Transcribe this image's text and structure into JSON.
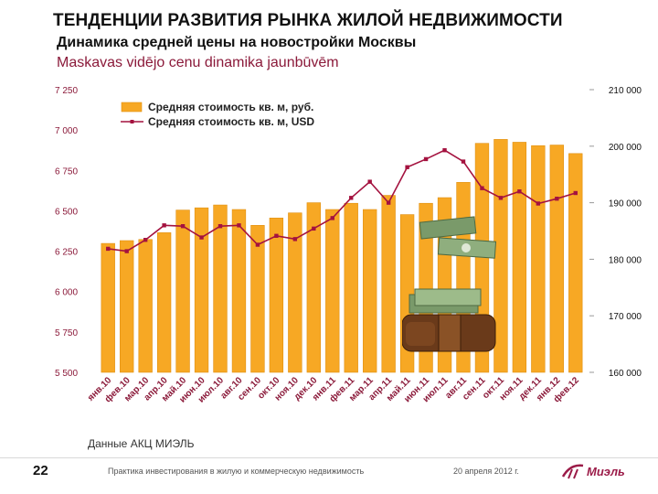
{
  "header": {
    "title": "ТЕНДЕНЦИИ РАЗВИТИЯ РЫНКА ЖИЛОЙ НЕДВИЖИМОСТИ",
    "subtitle_ru": "Динамика средней цены на новостройки Москвы",
    "subtitle_lv": "Maskavas vidējo cenu dinamika jaunbūvēm"
  },
  "chart_data": {
    "type": "bar",
    "categories": [
      "янв.10",
      "фев.10",
      "мар.10",
      "апр.10",
      "май.10",
      "июн.10",
      "июл.10",
      "авг.10",
      "сен.10",
      "окт.10",
      "ноя.10",
      "дек.10",
      "янв.11",
      "фев.11",
      "мар.11",
      "апр.11",
      "май.11",
      "июн.11",
      "июл.11",
      "авг.11",
      "сен.11",
      "окт.11",
      "ноя.11",
      "дек.11",
      "янв.12",
      "фев.12"
    ],
    "series": [
      {
        "name": "Средняя стоимость кв. м, руб.",
        "kind": "bar",
        "axis": "right",
        "values": [
          182800,
          183300,
          183500,
          184700,
          188700,
          189100,
          189600,
          188800,
          186000,
          187300,
          188200,
          190000,
          188800,
          189900,
          188800,
          191300,
          187900,
          189900,
          190900,
          193600,
          200500,
          201200,
          200700,
          200100,
          200200,
          198700
        ]
      },
      {
        "name": "Средняя стоимость кв. м, USD",
        "kind": "line",
        "axis": "left",
        "values": [
          6265,
          6250,
          6320,
          6410,
          6405,
          6335,
          6405,
          6410,
          6290,
          6345,
          6325,
          6390,
          6455,
          6580,
          6680,
          6550,
          6770,
          6820,
          6875,
          6805,
          6640,
          6580,
          6620,
          6545,
          6575,
          6610
        ]
      }
    ],
    "y_left": {
      "min": 5500,
      "max": 7250,
      "ticks": [
        "7 250",
        "7 000",
        "6 750",
        "6 500",
        "6 250",
        "6 000",
        "5 750",
        "5 500"
      ]
    },
    "y_right": {
      "min": 160000,
      "max": 210000,
      "ticks": [
        "210 000",
        "200 000",
        "190 000",
        "180 000",
        "170 000",
        "160 000"
      ]
    },
    "legend": {
      "position": "top-left"
    },
    "colors": {
      "bar": "#f7a824",
      "bar_edge": "#e08f10",
      "line": "#a4123f",
      "tick": "#8b1a3a"
    }
  },
  "source": "Данные АКЦ МИЭЛЬ",
  "footer": {
    "page_number": "22",
    "text": "Практика инвестирования в жилую и коммерческую недвижимость",
    "date": "20 апреля 2012 г.",
    "logo": "Миэль"
  }
}
